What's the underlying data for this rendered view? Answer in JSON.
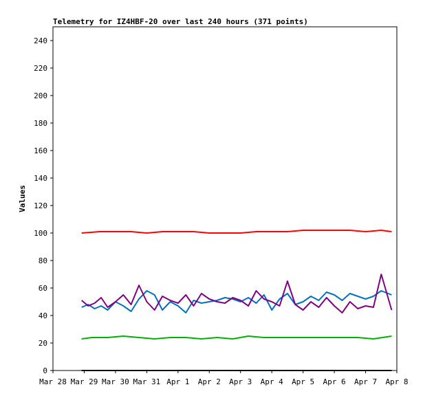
{
  "chart_data": {
    "type": "line",
    "title": "Telemetry for IZ4HBF-20 over last 240 hours (371 points)",
    "xlabel": "",
    "ylabel": "Values",
    "ylim": [
      0,
      250
    ],
    "yticks": [
      0,
      20,
      40,
      60,
      80,
      100,
      120,
      140,
      160,
      180,
      200,
      220,
      240
    ],
    "xlim": [
      "2026-03-28",
      "2026-04-08"
    ],
    "xticks": [
      {
        "date": "2026-03-28",
        "label": "Mar 28"
      },
      {
        "date": "2026-03-29",
        "label": "Mar 29"
      },
      {
        "date": "2026-03-30",
        "label": "Mar 30"
      },
      {
        "date": "2026-03-31",
        "label": "Mar 31"
      },
      {
        "date": "2026-04-01",
        "label": "Apr 1"
      },
      {
        "date": "2026-04-02",
        "label": "Apr 2"
      },
      {
        "date": "2026-04-03",
        "label": "Apr 3"
      },
      {
        "date": "2026-04-04",
        "label": "Apr 4"
      },
      {
        "date": "2026-04-05",
        "label": "Apr 5"
      },
      {
        "date": "2026-04-06",
        "label": "Apr 6"
      },
      {
        "date": "2026-04-07",
        "label": "Apr 7"
      },
      {
        "date": "2026-04-08",
        "label": "Apr 8"
      }
    ],
    "grid": false,
    "legend": "none",
    "series": [
      {
        "color": "#ff0000",
        "x": [
          "2026-03-28T22:00",
          "2026-03-29T12:00",
          "2026-03-30T00:00",
          "2026-03-30T12:00",
          "2026-03-31T00:00",
          "2026-03-31T12:00",
          "2026-04-01T00:00",
          "2026-04-01T12:00",
          "2026-04-02T00:00",
          "2026-04-02T12:00",
          "2026-04-03T00:00",
          "2026-04-03T12:00",
          "2026-04-04T00:00",
          "2026-04-04T12:00",
          "2026-04-05T00:00",
          "2026-04-05T12:00",
          "2026-04-06T00:00",
          "2026-04-06T12:00",
          "2026-04-07T00:00",
          "2026-04-07T12:00",
          "2026-04-07T20:00"
        ],
        "y": [
          100,
          101,
          101,
          101,
          100,
          101,
          101,
          101,
          100,
          100,
          100,
          101,
          101,
          101,
          102,
          102,
          102,
          102,
          101,
          102,
          101
        ]
      },
      {
        "color": "#0070c0",
        "x": [
          "2026-03-28T22:00",
          "2026-03-29T03:00",
          "2026-03-29T08:00",
          "2026-03-29T13:00",
          "2026-03-29T18:00",
          "2026-03-30T00:00",
          "2026-03-30T06:00",
          "2026-03-30T12:00",
          "2026-03-30T18:00",
          "2026-03-31T00:00",
          "2026-03-31T06:00",
          "2026-03-31T12:00",
          "2026-03-31T18:00",
          "2026-04-01T00:00",
          "2026-04-01T06:00",
          "2026-04-01T12:00",
          "2026-04-01T18:00",
          "2026-04-02T00:00",
          "2026-04-02T06:00",
          "2026-04-02T12:00",
          "2026-04-02T18:00",
          "2026-04-03T00:00",
          "2026-04-03T06:00",
          "2026-04-03T12:00",
          "2026-04-03T18:00",
          "2026-04-04T00:00",
          "2026-04-04T06:00",
          "2026-04-04T12:00",
          "2026-04-04T18:00",
          "2026-04-05T00:00",
          "2026-04-05T06:00",
          "2026-04-05T12:00",
          "2026-04-05T18:00",
          "2026-04-06T00:00",
          "2026-04-06T06:00",
          "2026-04-06T12:00",
          "2026-04-06T18:00",
          "2026-04-07T00:00",
          "2026-04-07T06:00",
          "2026-04-07T12:00",
          "2026-04-07T20:00"
        ],
        "y": [
          46,
          48,
          45,
          47,
          44,
          50,
          47,
          43,
          52,
          58,
          55,
          44,
          50,
          47,
          42,
          51,
          49,
          50,
          51,
          53,
          52,
          50,
          53,
          49,
          55,
          44,
          52,
          56,
          48,
          50,
          54,
          51,
          57,
          55,
          51,
          56,
          54,
          52,
          54,
          58,
          55
        ]
      },
      {
        "color": "#800080",
        "x": [
          "2026-03-28T22:00",
          "2026-03-29T03:00",
          "2026-03-29T08:00",
          "2026-03-29T13:00",
          "2026-03-29T18:00",
          "2026-03-30T00:00",
          "2026-03-30T06:00",
          "2026-03-30T12:00",
          "2026-03-30T18:00",
          "2026-03-31T00:00",
          "2026-03-31T06:00",
          "2026-03-31T12:00",
          "2026-03-31T18:00",
          "2026-04-01T00:00",
          "2026-04-01T06:00",
          "2026-04-01T12:00",
          "2026-04-01T18:00",
          "2026-04-02T00:00",
          "2026-04-02T06:00",
          "2026-04-02T12:00",
          "2026-04-02T18:00",
          "2026-04-03T00:00",
          "2026-04-03T06:00",
          "2026-04-03T12:00",
          "2026-04-03T18:00",
          "2026-04-04T00:00",
          "2026-04-04T06:00",
          "2026-04-04T12:00",
          "2026-04-04T18:00",
          "2026-04-05T00:00",
          "2026-04-05T06:00",
          "2026-04-05T12:00",
          "2026-04-05T18:00",
          "2026-04-06T00:00",
          "2026-04-06T06:00",
          "2026-04-06T12:00",
          "2026-04-06T18:00",
          "2026-04-07T00:00",
          "2026-04-07T06:00",
          "2026-04-07T12:00",
          "2026-04-07T20:00"
        ],
        "y": [
          51,
          47,
          49,
          53,
          46,
          50,
          55,
          48,
          62,
          50,
          44,
          54,
          51,
          49,
          55,
          47,
          56,
          52,
          50,
          49,
          53,
          51,
          47,
          58,
          52,
          50,
          47,
          65,
          48,
          44,
          50,
          46,
          53,
          47,
          42,
          50,
          45,
          47,
          46,
          70,
          44
        ]
      },
      {
        "color": "#00b000",
        "x": [
          "2026-03-28T22:00",
          "2026-03-29T06:00",
          "2026-03-29T18:00",
          "2026-03-30T06:00",
          "2026-03-30T18:00",
          "2026-03-31T06:00",
          "2026-03-31T18:00",
          "2026-04-01T06:00",
          "2026-04-01T18:00",
          "2026-04-02T06:00",
          "2026-04-02T18:00",
          "2026-04-03T06:00",
          "2026-04-03T18:00",
          "2026-04-04T06:00",
          "2026-04-04T18:00",
          "2026-04-05T06:00",
          "2026-04-05T18:00",
          "2026-04-06T06:00",
          "2026-04-06T18:00",
          "2026-04-07T06:00",
          "2026-04-07T20:00"
        ],
        "y": [
          23,
          24,
          24,
          25,
          24,
          23,
          24,
          24,
          23,
          24,
          23,
          25,
          24,
          24,
          24,
          24,
          24,
          24,
          24,
          23,
          25
        ]
      },
      {
        "color": "#000000",
        "x": [
          "2026-03-28T22:00",
          "2026-04-07T20:00"
        ],
        "y": [
          0,
          0
        ]
      }
    ]
  }
}
